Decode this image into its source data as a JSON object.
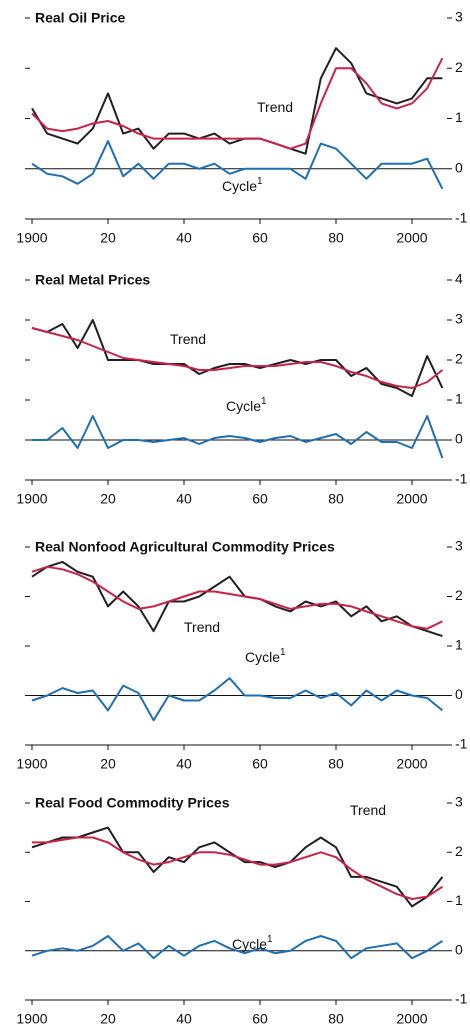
{
  "chart_data": [
    {
      "type": "line",
      "title": "Real Oil Price",
      "x": [
        1900,
        1904,
        1908,
        1912,
        1916,
        1920,
        1924,
        1928,
        1932,
        1936,
        1940,
        1944,
        1948,
        1952,
        1956,
        1960,
        1964,
        1968,
        1972,
        1976,
        1980,
        1984,
        1988,
        1992,
        1996,
        2000,
        2004,
        2008
      ],
      "series": [
        {
          "color": "#231f20",
          "values": [
            1.2,
            0.7,
            0.6,
            0.5,
            0.8,
            1.5,
            0.7,
            0.8,
            0.4,
            0.7,
            0.7,
            0.6,
            0.7,
            0.5,
            0.6,
            0.6,
            0.5,
            0.4,
            0.3,
            1.8,
            2.4,
            2.1,
            1.5,
            1.4,
            1.3,
            1.4,
            1.8,
            1.8
          ]
        },
        {
          "color": "#c8234a",
          "values": [
            1.1,
            0.8,
            0.75,
            0.8,
            0.9,
            0.95,
            0.85,
            0.7,
            0.6,
            0.6,
            0.6,
            0.6,
            0.6,
            0.6,
            0.6,
            0.6,
            0.5,
            0.4,
            0.5,
            1.3,
            2.0,
            2.0,
            1.7,
            1.3,
            1.2,
            1.3,
            1.6,
            2.2
          ]
        },
        {
          "color": "#1f6fb4",
          "values": [
            0.1,
            -0.1,
            -0.15,
            -0.3,
            -0.1,
            0.55,
            -0.15,
            0.1,
            -0.2,
            0.1,
            0.1,
            0,
            0.1,
            -0.1,
            0,
            0,
            0,
            0,
            -0.2,
            0.5,
            0.4,
            0.1,
            -0.2,
            0.1,
            0.1,
            0.1,
            0.2,
            -0.4
          ]
        }
      ],
      "annotations": [
        {
          "text": "Trend"
        },
        {
          "text": "Cycle",
          "sup": "1"
        }
      ],
      "xlim": [
        1898,
        2010
      ],
      "xticks": [
        {
          "value": 1900,
          "label": "1900"
        },
        {
          "value": 1920,
          "label": "20"
        },
        {
          "value": 1940,
          "label": "40"
        },
        {
          "value": 1960,
          "label": "60"
        },
        {
          "value": 1980,
          "label": "80"
        },
        {
          "value": 2000,
          "label": "2000"
        }
      ],
      "ylim": [
        -1,
        3
      ],
      "yticks": [
        -1,
        0,
        1,
        2,
        3
      ]
    },
    {
      "type": "line",
      "title": "Real Metal Prices",
      "x": [
        1900,
        1904,
        1908,
        1912,
        1916,
        1920,
        1924,
        1928,
        1932,
        1936,
        1940,
        1944,
        1948,
        1952,
        1956,
        1960,
        1964,
        1968,
        1972,
        1976,
        1980,
        1984,
        1988,
        1992,
        1996,
        2000,
        2004,
        2008
      ],
      "series": [
        {
          "color": "#231f20",
          "values": [
            2.8,
            2.7,
            2.9,
            2.3,
            3.0,
            2.0,
            2.0,
            2.0,
            1.9,
            1.9,
            1.9,
            1.65,
            1.8,
            1.9,
            1.9,
            1.8,
            1.9,
            2.0,
            1.9,
            2.0,
            2.0,
            1.6,
            1.8,
            1.4,
            1.3,
            1.1,
            2.1,
            1.3
          ]
        },
        {
          "color": "#c8234a",
          "values": [
            2.8,
            2.7,
            2.6,
            2.5,
            2.35,
            2.2,
            2.05,
            2.0,
            1.95,
            1.9,
            1.85,
            1.75,
            1.75,
            1.8,
            1.85,
            1.85,
            1.85,
            1.9,
            1.95,
            1.95,
            1.85,
            1.7,
            1.6,
            1.45,
            1.35,
            1.3,
            1.45,
            1.75
          ]
        },
        {
          "color": "#1f6fb4",
          "values": [
            0,
            0,
            0.3,
            -0.2,
            0.6,
            -0.2,
            0,
            0,
            -0.05,
            0,
            0.05,
            -0.1,
            0.05,
            0.1,
            0.05,
            -0.05,
            0.05,
            0.1,
            -0.05,
            0.05,
            0.15,
            -0.1,
            0.2,
            -0.05,
            -0.05,
            -0.2,
            0.6,
            -0.45
          ]
        }
      ],
      "annotations": [
        {
          "text": "Trend"
        },
        {
          "text": "Cycle",
          "sup": "1"
        }
      ],
      "xlim": [
        1898,
        2010
      ],
      "xticks": [
        {
          "value": 1900,
          "label": "1900"
        },
        {
          "value": 1920,
          "label": "20"
        },
        {
          "value": 1940,
          "label": "40"
        },
        {
          "value": 1960,
          "label": "60"
        },
        {
          "value": 1980,
          "label": "80"
        },
        {
          "value": 2000,
          "label": "2000"
        }
      ],
      "ylim": [
        -1,
        4
      ],
      "yticks": [
        -1,
        0,
        1,
        2,
        3,
        4
      ]
    },
    {
      "type": "line",
      "title": "Real Nonfood Agricultural Commodity Prices",
      "x": [
        1900,
        1904,
        1908,
        1912,
        1916,
        1920,
        1924,
        1928,
        1932,
        1936,
        1940,
        1944,
        1948,
        1952,
        1956,
        1960,
        1964,
        1968,
        1972,
        1976,
        1980,
        1984,
        1988,
        1992,
        1996,
        2000,
        2004,
        2008
      ],
      "series": [
        {
          "color": "#231f20",
          "values": [
            2.4,
            2.6,
            2.7,
            2.5,
            2.4,
            1.8,
            2.1,
            1.8,
            1.3,
            1.9,
            1.9,
            2.0,
            2.2,
            2.4,
            2.0,
            1.95,
            1.8,
            1.7,
            1.9,
            1.8,
            1.9,
            1.6,
            1.8,
            1.5,
            1.6,
            1.4,
            1.3,
            1.2
          ]
        },
        {
          "color": "#c8234a",
          "values": [
            2.5,
            2.6,
            2.55,
            2.45,
            2.3,
            2.1,
            1.9,
            1.75,
            1.8,
            1.9,
            2.0,
            2.1,
            2.1,
            2.05,
            2.0,
            1.95,
            1.85,
            1.75,
            1.8,
            1.85,
            1.85,
            1.8,
            1.7,
            1.6,
            1.5,
            1.4,
            1.35,
            1.5
          ]
        },
        {
          "color": "#1f6fb4",
          "values": [
            -0.1,
            0,
            0.15,
            0.05,
            0.1,
            -0.3,
            0.2,
            0.05,
            -0.5,
            0,
            -0.1,
            -0.1,
            0.1,
            0.35,
            0,
            0,
            -0.05,
            -0.05,
            0.1,
            -0.05,
            0.05,
            -0.2,
            0.1,
            -0.1,
            0.1,
            0,
            -0.05,
            -0.3
          ]
        }
      ],
      "annotations": [
        {
          "text": "Trend"
        },
        {
          "text": "Cycle",
          "sup": "1"
        }
      ],
      "xlim": [
        1898,
        2010
      ],
      "xticks": [
        {
          "value": 1900,
          "label": "1900"
        },
        {
          "value": 1920,
          "label": "20"
        },
        {
          "value": 1940,
          "label": "40"
        },
        {
          "value": 1960,
          "label": "60"
        },
        {
          "value": 1980,
          "label": "80"
        },
        {
          "value": 2000,
          "label": "2000"
        }
      ],
      "ylim": [
        -1,
        3
      ],
      "yticks": [
        -1,
        0,
        1,
        2,
        3
      ]
    },
    {
      "type": "line",
      "title": "Real Food Commodity Prices",
      "x": [
        1900,
        1904,
        1908,
        1912,
        1916,
        1920,
        1924,
        1928,
        1932,
        1936,
        1940,
        1944,
        1948,
        1952,
        1956,
        1960,
        1964,
        1968,
        1972,
        1976,
        1980,
        1984,
        1988,
        1992,
        1996,
        2000,
        2004,
        2008
      ],
      "series": [
        {
          "color": "#231f20",
          "values": [
            2.1,
            2.2,
            2.3,
            2.3,
            2.4,
            2.5,
            2.0,
            2.0,
            1.6,
            1.9,
            1.8,
            2.1,
            2.2,
            2.0,
            1.8,
            1.8,
            1.7,
            1.8,
            2.1,
            2.3,
            2.1,
            1.5,
            1.5,
            1.4,
            1.3,
            0.9,
            1.1,
            1.5
          ]
        },
        {
          "color": "#c8234a",
          "values": [
            2.2,
            2.2,
            2.25,
            2.3,
            2.3,
            2.2,
            2.0,
            1.85,
            1.75,
            1.8,
            1.9,
            2.0,
            2.0,
            1.95,
            1.85,
            1.75,
            1.75,
            1.8,
            1.9,
            2.0,
            1.9,
            1.65,
            1.45,
            1.3,
            1.15,
            1.05,
            1.1,
            1.3
          ]
        },
        {
          "color": "#1f6fb4",
          "values": [
            -0.1,
            0,
            0.05,
            0,
            0.1,
            0.3,
            0,
            0.15,
            -0.15,
            0.1,
            -0.1,
            0.1,
            0.2,
            0.05,
            -0.05,
            0.05,
            -0.05,
            0,
            0.2,
            0.3,
            0.2,
            -0.15,
            0.05,
            0.1,
            0.15,
            -0.15,
            0,
            0.2
          ]
        }
      ],
      "annotations": [
        {
          "text": "Trend"
        },
        {
          "text": "Cycle",
          "sup": "1"
        }
      ],
      "xlim": [
        1898,
        2010
      ],
      "xticks": [
        {
          "value": 1900,
          "label": "1900"
        },
        {
          "value": 1920,
          "label": "20"
        },
        {
          "value": 1940,
          "label": "40"
        },
        {
          "value": 1960,
          "label": "60"
        },
        {
          "value": 1980,
          "label": "80"
        },
        {
          "value": 2000,
          "label": "2000"
        }
      ],
      "ylim": [
        -1,
        3
      ],
      "yticks": [
        -1,
        0,
        1,
        2,
        3
      ]
    }
  ]
}
